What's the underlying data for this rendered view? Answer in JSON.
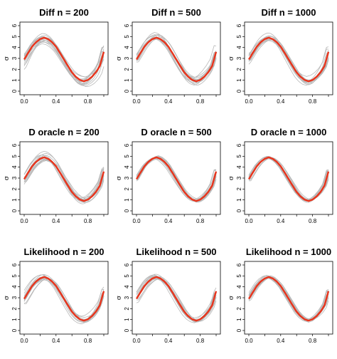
{
  "chart_data": [
    {
      "type": "line",
      "title": "Diff n = 200",
      "ylabel": "σ",
      "xlim": [
        0,
        1
      ],
      "ylim": [
        0,
        6
      ],
      "x_ticks": [
        "0.0",
        "0.4",
        "0.8"
      ],
      "y_ticks": [
        "0",
        "1",
        "2",
        "3",
        "4",
        "5",
        "6"
      ],
      "truth": {
        "x": [
          0,
          0.05,
          0.1,
          0.15,
          0.2,
          0.25,
          0.3,
          0.35,
          0.4,
          0.45,
          0.5,
          0.55,
          0.6,
          0.65,
          0.7,
          0.75,
          0.8,
          0.85,
          0.9,
          0.95,
          1
        ],
        "y": [
          2.9,
          3.5,
          4.08,
          4.49,
          4.77,
          4.9,
          4.77,
          4.49,
          4.08,
          3.5,
          2.9,
          2.3,
          1.72,
          1.31,
          1.03,
          0.9,
          1.03,
          1.31,
          1.72,
          2.3,
          3.6
        ]
      },
      "color": "#e8341c",
      "band_color": "#b8b8b8",
      "band_count": 14,
      "band_spread": 0.85
    },
    {
      "type": "line",
      "title": "Diff n = 500",
      "ylabel": "σ",
      "xlim": [
        0,
        1
      ],
      "ylim": [
        0,
        6
      ],
      "x_ticks": [
        "0.0",
        "0.4",
        "0.8"
      ],
      "y_ticks": [
        "0",
        "1",
        "2",
        "3",
        "4",
        "5",
        "6"
      ],
      "truth": {
        "x": [
          0,
          0.05,
          0.1,
          0.15,
          0.2,
          0.25,
          0.3,
          0.35,
          0.4,
          0.45,
          0.5,
          0.55,
          0.6,
          0.65,
          0.7,
          0.75,
          0.8,
          0.85,
          0.9,
          0.95,
          1
        ],
        "y": [
          2.9,
          3.5,
          4.08,
          4.49,
          4.77,
          4.9,
          4.77,
          4.49,
          4.08,
          3.5,
          2.9,
          2.3,
          1.72,
          1.31,
          1.03,
          0.9,
          1.03,
          1.31,
          1.72,
          2.3,
          3.6
        ]
      },
      "color": "#e8341c",
      "band_color": "#b8b8b8",
      "band_count": 14,
      "band_spread": 0.6
    },
    {
      "type": "line",
      "title": "Diff n = 1000",
      "ylabel": "σ",
      "xlim": [
        0,
        1
      ],
      "ylim": [
        0,
        6
      ],
      "x_ticks": [
        "0.0",
        "0.4",
        "0.8"
      ],
      "y_ticks": [
        "0",
        "1",
        "2",
        "3",
        "4",
        "5",
        "6"
      ],
      "truth": {
        "x": [
          0,
          0.05,
          0.1,
          0.15,
          0.2,
          0.25,
          0.3,
          0.35,
          0.4,
          0.45,
          0.5,
          0.55,
          0.6,
          0.65,
          0.7,
          0.75,
          0.8,
          0.85,
          0.9,
          0.95,
          1
        ],
        "y": [
          2.9,
          3.5,
          4.08,
          4.49,
          4.77,
          4.9,
          4.77,
          4.49,
          4.08,
          3.5,
          2.9,
          2.3,
          1.72,
          1.31,
          1.03,
          0.9,
          1.03,
          1.31,
          1.72,
          2.3,
          3.6
        ]
      },
      "color": "#e8341c",
      "band_color": "#b8b8b8",
      "band_count": 14,
      "band_spread": 0.5
    },
    {
      "type": "line",
      "title": "D oracle n = 200",
      "ylabel": "σ",
      "xlim": [
        0,
        1
      ],
      "ylim": [
        0,
        6
      ],
      "x_ticks": [
        "0.0",
        "0.4",
        "0.8"
      ],
      "y_ticks": [
        "0",
        "1",
        "2",
        "3",
        "4",
        "5",
        "6"
      ],
      "truth": {
        "x": [
          0,
          0.05,
          0.1,
          0.15,
          0.2,
          0.25,
          0.3,
          0.35,
          0.4,
          0.45,
          0.5,
          0.55,
          0.6,
          0.65,
          0.7,
          0.75,
          0.8,
          0.85,
          0.9,
          0.95,
          1
        ],
        "y": [
          2.9,
          3.5,
          4.08,
          4.49,
          4.77,
          4.9,
          4.77,
          4.49,
          4.08,
          3.5,
          2.9,
          2.3,
          1.72,
          1.31,
          1.03,
          0.9,
          1.03,
          1.31,
          1.72,
          2.3,
          3.6
        ]
      },
      "color": "#e8341c",
      "band_color": "#b8b8b8",
      "band_count": 14,
      "band_spread": 0.55
    },
    {
      "type": "line",
      "title": "D oracle n = 500",
      "ylabel": "σ",
      "xlim": [
        0,
        1
      ],
      "ylim": [
        0,
        6
      ],
      "x_ticks": [
        "0.0",
        "0.4",
        "0.8"
      ],
      "y_ticks": [
        "0",
        "1",
        "2",
        "3",
        "4",
        "5",
        "6"
      ],
      "truth": {
        "x": [
          0,
          0.05,
          0.1,
          0.15,
          0.2,
          0.25,
          0.3,
          0.35,
          0.4,
          0.45,
          0.5,
          0.55,
          0.6,
          0.65,
          0.7,
          0.75,
          0.8,
          0.85,
          0.9,
          0.95,
          1
        ],
        "y": [
          2.9,
          3.5,
          4.08,
          4.49,
          4.77,
          4.9,
          4.77,
          4.49,
          4.08,
          3.5,
          2.9,
          2.3,
          1.72,
          1.31,
          1.03,
          0.9,
          1.03,
          1.31,
          1.72,
          2.3,
          3.6
        ]
      },
      "color": "#e8341c",
      "band_color": "#b8b8b8",
      "band_count": 14,
      "band_spread": 0.3
    },
    {
      "type": "line",
      "title": "D oracle n = 1000",
      "ylabel": "σ",
      "xlim": [
        0,
        1
      ],
      "ylim": [
        0,
        6
      ],
      "x_ticks": [
        "0.0",
        "0.4",
        "0.8"
      ],
      "y_ticks": [
        "0",
        "1",
        "2",
        "3",
        "4",
        "5",
        "6"
      ],
      "truth": {
        "x": [
          0,
          0.05,
          0.1,
          0.15,
          0.2,
          0.25,
          0.3,
          0.35,
          0.4,
          0.45,
          0.5,
          0.55,
          0.6,
          0.65,
          0.7,
          0.75,
          0.8,
          0.85,
          0.9,
          0.95,
          1
        ],
        "y": [
          2.9,
          3.5,
          4.08,
          4.49,
          4.77,
          4.9,
          4.77,
          4.49,
          4.08,
          3.5,
          2.9,
          2.3,
          1.72,
          1.31,
          1.03,
          0.9,
          1.03,
          1.31,
          1.72,
          2.3,
          3.6
        ]
      },
      "color": "#e8341c",
      "band_color": "#b8b8b8",
      "band_count": 14,
      "band_spread": 0.22
    },
    {
      "type": "line",
      "title": "Likelihood n = 200",
      "ylabel": "σ",
      "xlim": [
        0,
        1
      ],
      "ylim": [
        0,
        6
      ],
      "x_ticks": [
        "0.0",
        "0.4",
        "0.8"
      ],
      "y_ticks": [
        "0",
        "1",
        "2",
        "3",
        "4",
        "5",
        "6"
      ],
      "truth": {
        "x": [
          0,
          0.05,
          0.1,
          0.15,
          0.2,
          0.25,
          0.3,
          0.35,
          0.4,
          0.45,
          0.5,
          0.55,
          0.6,
          0.65,
          0.7,
          0.75,
          0.8,
          0.85,
          0.9,
          0.95,
          1
        ],
        "y": [
          2.9,
          3.5,
          4.08,
          4.49,
          4.77,
          4.9,
          4.77,
          4.49,
          4.08,
          3.5,
          2.9,
          2.3,
          1.72,
          1.31,
          1.03,
          0.9,
          1.03,
          1.31,
          1.72,
          2.3,
          3.6
        ]
      },
      "color": "#e8341c",
      "band_color": "#b8b8b8",
      "band_count": 14,
      "band_spread": 0.6
    },
    {
      "type": "line",
      "title": "Likelihood n = 500",
      "ylabel": "σ",
      "xlim": [
        0,
        1
      ],
      "ylim": [
        0,
        6
      ],
      "x_ticks": [
        "0.0",
        "0.4",
        "0.8"
      ],
      "y_ticks": [
        "0",
        "1",
        "2",
        "3",
        "4",
        "5",
        "6"
      ],
      "truth": {
        "x": [
          0,
          0.05,
          0.1,
          0.15,
          0.2,
          0.25,
          0.3,
          0.35,
          0.4,
          0.45,
          0.5,
          0.55,
          0.6,
          0.65,
          0.7,
          0.75,
          0.8,
          0.85,
          0.9,
          0.95,
          1
        ],
        "y": [
          2.9,
          3.5,
          4.08,
          4.49,
          4.77,
          4.9,
          4.77,
          4.49,
          4.08,
          3.5,
          2.9,
          2.3,
          1.72,
          1.31,
          1.03,
          0.9,
          1.03,
          1.31,
          1.72,
          2.3,
          3.6
        ]
      },
      "color": "#e8341c",
      "band_color": "#b8b8b8",
      "band_count": 14,
      "band_spread": 0.4
    },
    {
      "type": "line",
      "title": "Likelihood n = 1000",
      "ylabel": "σ",
      "xlim": [
        0,
        1
      ],
      "ylim": [
        0,
        6
      ],
      "x_ticks": [
        "0.0",
        "0.4",
        "0.8"
      ],
      "y_ticks": [
        "0",
        "1",
        "2",
        "3",
        "4",
        "5",
        "6"
      ],
      "truth": {
        "x": [
          0,
          0.05,
          0.1,
          0.15,
          0.2,
          0.25,
          0.3,
          0.35,
          0.4,
          0.45,
          0.5,
          0.55,
          0.6,
          0.65,
          0.7,
          0.75,
          0.8,
          0.85,
          0.9,
          0.95,
          1
        ],
        "y": [
          2.9,
          3.5,
          4.08,
          4.49,
          4.77,
          4.9,
          4.77,
          4.49,
          4.08,
          3.5,
          2.9,
          2.3,
          1.72,
          1.31,
          1.03,
          0.9,
          1.03,
          1.31,
          1.72,
          2.3,
          3.6
        ]
      },
      "color": "#e8341c",
      "band_color": "#b8b8b8",
      "band_count": 14,
      "band_spread": 0.3
    }
  ]
}
